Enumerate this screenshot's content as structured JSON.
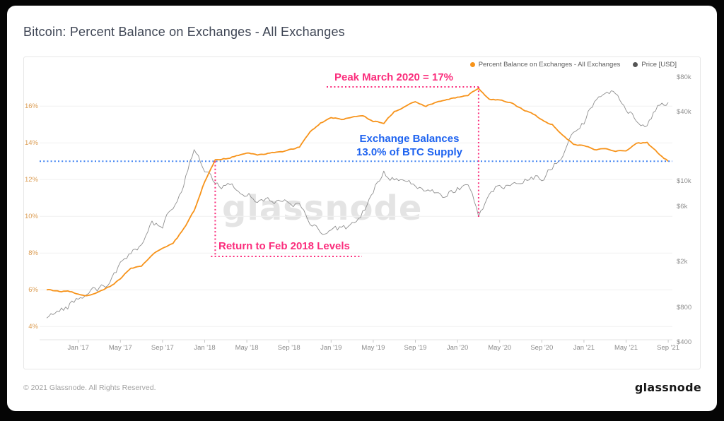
{
  "header": {
    "title": "Bitcoin: Percent Balance on Exchanges - All Exchanges"
  },
  "legend": {
    "items": [
      {
        "label": "Percent Balance on Exchanges - All Exchanges",
        "color": "#f7931a"
      },
      {
        "label": "Price [USD]",
        "color": "#555555"
      }
    ]
  },
  "annotations": {
    "peak_label": "Peak March 2020 = 17%",
    "balance_label_line1": "Exchange Balances",
    "balance_label_line2": "13.0% of BTC Supply",
    "return_label": "Return to Feb 2018 Levels",
    "pink_color": "#fb2d7c",
    "blue_color": "#1e63f0"
  },
  "watermark": "glassnode",
  "footer": {
    "copyright": "© 2021 Glassnode. All Rights Reserved.",
    "logo": "glassnode"
  },
  "chart_data": {
    "type": "line",
    "title": "Bitcoin: Percent Balance on Exchanges - All Exchanges",
    "x_start": "Oct 2016",
    "x_interval": "monthly",
    "x_tick_labels": [
      "Jan '17",
      "May '17",
      "Sep '17",
      "Jan '18",
      "May '18",
      "Sep '18",
      "Jan '19",
      "May '19",
      "Sep '19",
      "Jan '20",
      "May '20",
      "Sep '20",
      "Jan '21",
      "May '21",
      "Sep '21"
    ],
    "x_tick_month_index": [
      3,
      7,
      11,
      15,
      19,
      23,
      27,
      31,
      35,
      39,
      43,
      47,
      51,
      55,
      59
    ],
    "grid": "horizontal",
    "legend_position": "top-right",
    "left_axis": {
      "series": "Percent Balance on Exchanges - All Exchanges",
      "scale": "linear",
      "range": [
        3.6,
        17.6
      ],
      "tick_values": [
        16,
        14,
        12,
        10,
        8,
        6,
        4
      ],
      "tick_labels": [
        "16%",
        "14%",
        "12%",
        "10%",
        "8%",
        "6%",
        "4%"
      ],
      "color": "#db9c52"
    },
    "right_axis": {
      "series": "Price [USD]",
      "scale": "log",
      "range": [
        400,
        100000
      ],
      "tick_values": [
        80000,
        40000,
        10000,
        6000,
        2000,
        800,
        400
      ],
      "tick_labels": [
        "$80k",
        "$40k",
        "$10k",
        "$6k",
        "$2k",
        "$800",
        "$400"
      ],
      "color": "#8f8f8f"
    },
    "series": [
      {
        "name": "Percent Balance on Exchanges - All Exchanges",
        "axis": "left",
        "color": "#f7931a",
        "values": [
          6.0,
          5.95,
          5.9,
          5.8,
          5.7,
          5.9,
          6.2,
          6.6,
          7.2,
          7.3,
          7.9,
          8.3,
          8.5,
          9.3,
          10.3,
          11.9,
          13.05,
          13.15,
          13.3,
          13.45,
          13.35,
          13.45,
          13.5,
          13.6,
          13.8,
          14.6,
          15.1,
          15.35,
          15.3,
          15.4,
          15.5,
          15.2,
          15.1,
          15.7,
          16.0,
          16.25,
          16.0,
          16.2,
          16.35,
          16.5,
          16.6,
          17.0,
          16.4,
          16.35,
          16.2,
          15.9,
          15.6,
          15.3,
          15.0,
          14.4,
          13.95,
          13.85,
          13.65,
          13.7,
          13.55,
          13.6,
          13.95,
          14.0,
          13.45,
          13.0
        ]
      },
      {
        "name": "Price [USD]",
        "axis": "right",
        "color": "#8f8f8f",
        "values": [
          640,
          710,
          790,
          950,
          1060,
          1150,
          1250,
          1900,
          2500,
          2700,
          4200,
          4100,
          5800,
          9500,
          19000,
          12500,
          9800,
          8800,
          8900,
          8000,
          6500,
          7100,
          6700,
          6500,
          6400,
          4300,
          3700,
          3550,
          3800,
          4000,
          5300,
          7800,
          11800,
          10500,
          10200,
          8800,
          8800,
          7800,
          7200,
          8800,
          9300,
          5200,
          7200,
          9200,
          9300,
          9600,
          11500,
          10700,
          13000,
          17500,
          26000,
          33000,
          47000,
          57000,
          60000,
          42000,
          34000,
          32000,
          46000,
          48000
        ]
      }
    ],
    "reference_lines": [
      {
        "type": "horizontal",
        "axis": "left",
        "value": 13.0,
        "style": "dotted",
        "color": "#3f82f2",
        "label": "Exchange Balances 13.0% of BTC Supply"
      },
      {
        "type": "vertical",
        "date": "Feb 2018",
        "month_index": 16,
        "style": "dotted",
        "color": "#fb2d7c",
        "label": "Return to Feb 2018 Levels"
      },
      {
        "type": "vertical",
        "date": "Mar 2020",
        "month_index": 41,
        "style": "dotted",
        "color": "#fb2d7c",
        "label": "Peak March 2020 = 17%"
      }
    ]
  }
}
